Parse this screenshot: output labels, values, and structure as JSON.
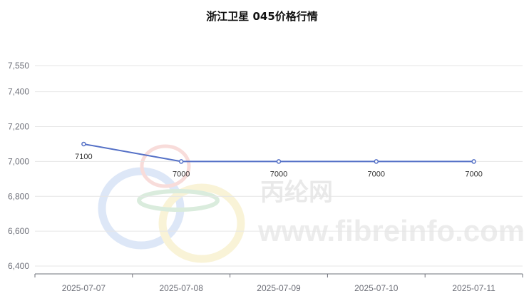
{
  "chart_data": {
    "type": "line",
    "title": "浙江卫星 045价格行情",
    "categories": [
      "2025-07-07",
      "2025-07-08",
      "2025-07-09",
      "2025-07-10",
      "2025-07-11"
    ],
    "series": [
      {
        "values": [
          7100,
          7000,
          7000,
          7000,
          7000
        ]
      }
    ],
    "data_labels": [
      "7100",
      "7000",
      "7000",
      "7000",
      "7000"
    ],
    "ylim": [
      6400,
      7550
    ],
    "yticks": [
      6400,
      6600,
      6800,
      7000,
      7200,
      7400,
      7550
    ],
    "ytick_labels": [
      "6,400",
      "6,600",
      "6,800",
      "7,000",
      "7,200",
      "7,400",
      "7,550"
    ],
    "grid": true,
    "xlabel": "",
    "ylabel": ""
  },
  "watermark": {
    "brand": "丙纶网",
    "url": "www.fibreinfo.com"
  },
  "colors": {
    "line": "#5470c6",
    "grid": "#e6e6e6",
    "axis": "#6e7079",
    "label": "#333333"
  }
}
